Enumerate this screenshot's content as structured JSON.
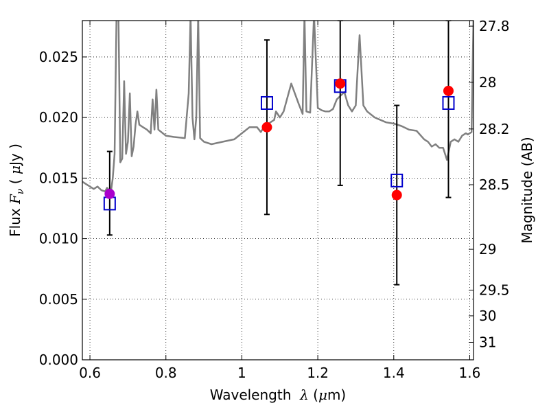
{
  "chart_data": {
    "type": "scatter",
    "xlabel": {
      "prefix": "Wavelength  ",
      "symbol": "λ",
      "unit_open": " (",
      "unit_mu": "μ",
      "unit_close": "m)"
    },
    "ylabel": {
      "prefix": "Flux  ",
      "symbol": "F",
      "subscript": "ν",
      "unit_open": "  ( ",
      "unit_mu": "μ",
      "unit_close": "Jy )"
    },
    "y2label": "Magnitude (AB)",
    "xlim": [
      0.58,
      1.61
    ],
    "ylim": [
      0.0,
      0.028
    ],
    "grid": true,
    "x_ticks": [
      {
        "value": 0.6,
        "label": "0.6"
      },
      {
        "value": 0.8,
        "label": "0.8"
      },
      {
        "value": 1.0,
        "label": "1"
      },
      {
        "value": 1.2,
        "label": "1.2"
      },
      {
        "value": 1.4,
        "label": "1.4"
      },
      {
        "value": 1.6,
        "label": "1.6"
      }
    ],
    "y_ticks": [
      {
        "value": 0.0,
        "label": "0.000"
      },
      {
        "value": 0.005,
        "label": "0.005"
      },
      {
        "value": 0.01,
        "label": "0.010"
      },
      {
        "value": 0.015,
        "label": "0.015"
      },
      {
        "value": 0.02,
        "label": "0.020"
      },
      {
        "value": 0.025,
        "label": "0.025"
      }
    ],
    "y2_ticks": [
      {
        "value": 27.8,
        "label": "27.8"
      },
      {
        "value": 28.0,
        "label": "28"
      },
      {
        "value": 28.2,
        "label": "28.2"
      },
      {
        "value": 28.5,
        "label": "28.5"
      },
      {
        "value": 29.0,
        "label": "29"
      },
      {
        "value": 29.5,
        "label": "29.5"
      },
      {
        "value": 30.0,
        "label": "30"
      },
      {
        "value": 31.0,
        "label": "31"
      }
    ],
    "model_spectrum": {
      "color": "#808080",
      "x": [
        0.58,
        0.6,
        0.61,
        0.62,
        0.63,
        0.64,
        0.645,
        0.655,
        0.66,
        0.665,
        0.67,
        0.675,
        0.68,
        0.685,
        0.69,
        0.695,
        0.7,
        0.705,
        0.71,
        0.715,
        0.72,
        0.725,
        0.73,
        0.74,
        0.75,
        0.76,
        0.765,
        0.77,
        0.775,
        0.78,
        0.8,
        0.82,
        0.85,
        0.86,
        0.865,
        0.87,
        0.875,
        0.88,
        0.885,
        0.89,
        0.9,
        0.92,
        0.95,
        0.98,
        1.0,
        1.02,
        1.04,
        1.05,
        1.06,
        1.07,
        1.08,
        1.085,
        1.09,
        1.1,
        1.11,
        1.13,
        1.15,
        1.16,
        1.165,
        1.17,
        1.18,
        1.19,
        1.2,
        1.21,
        1.22,
        1.23,
        1.24,
        1.25,
        1.26,
        1.27,
        1.28,
        1.29,
        1.3,
        1.305,
        1.31,
        1.32,
        1.33,
        1.35,
        1.38,
        1.4,
        1.42,
        1.44,
        1.46,
        1.48,
        1.49,
        1.5,
        1.51,
        1.52,
        1.53,
        1.54,
        1.55,
        1.56,
        1.57,
        1.58,
        1.59,
        1.595,
        1.6,
        1.605,
        1.61
      ],
      "y": [
        0.0147,
        0.0143,
        0.0141,
        0.0143,
        0.014,
        0.0139,
        0.0142,
        0.0138,
        0.015,
        0.017,
        0.0285,
        0.0285,
        0.0163,
        0.0166,
        0.023,
        0.017,
        0.018,
        0.022,
        0.0168,
        0.0176,
        0.0194,
        0.0205,
        0.0194,
        0.0192,
        0.019,
        0.0187,
        0.0215,
        0.019,
        0.0223,
        0.019,
        0.0185,
        0.0184,
        0.0183,
        0.022,
        0.0285,
        0.02,
        0.0182,
        0.02,
        0.0285,
        0.0183,
        0.018,
        0.0178,
        0.018,
        0.0182,
        0.0187,
        0.0192,
        0.0192,
        0.0188,
        0.0193,
        0.0195,
        0.0197,
        0.0198,
        0.0205,
        0.02,
        0.0205,
        0.0228,
        0.0211,
        0.0203,
        0.0285,
        0.0205,
        0.0204,
        0.0285,
        0.0208,
        0.0206,
        0.0205,
        0.0205,
        0.0207,
        0.0215,
        0.0218,
        0.0221,
        0.021,
        0.0205,
        0.021,
        0.024,
        0.0268,
        0.021,
        0.0205,
        0.02,
        0.0196,
        0.0195,
        0.0193,
        0.019,
        0.0189,
        0.0182,
        0.018,
        0.0176,
        0.0178,
        0.0175,
        0.0175,
        0.0165,
        0.018,
        0.0182,
        0.018,
        0.0185,
        0.0187,
        0.0186,
        0.0187,
        0.0188,
        0.0285
      ]
    },
    "series": [
      {
        "marker": "open-square",
        "color": "#0000cc",
        "x": [
          0.652,
          1.066,
          1.259,
          1.408,
          1.544
        ],
        "y": [
          0.0129,
          0.0212,
          0.0226,
          0.0148,
          0.0212
        ]
      },
      {
        "marker": "filled-circle",
        "x": [
          0.652,
          1.066,
          1.259,
          1.408,
          1.544
        ],
        "y": [
          0.0137,
          0.0192,
          0.0228,
          0.0136,
          0.0222
        ],
        "colors": [
          "#aa00cc",
          "#ff0000",
          "#ff0000",
          "#ff0000",
          "#ff0000"
        ]
      },
      {
        "marker": "errorbar",
        "color": "#000000",
        "x": [
          0.652,
          1.066,
          1.259,
          1.408,
          1.544
        ],
        "y_low": [
          0.0103,
          0.012,
          0.0144,
          0.0062,
          0.0134
        ],
        "y_high": [
          0.0172,
          0.0264,
          0.028,
          0.021,
          0.028
        ]
      }
    ]
  }
}
